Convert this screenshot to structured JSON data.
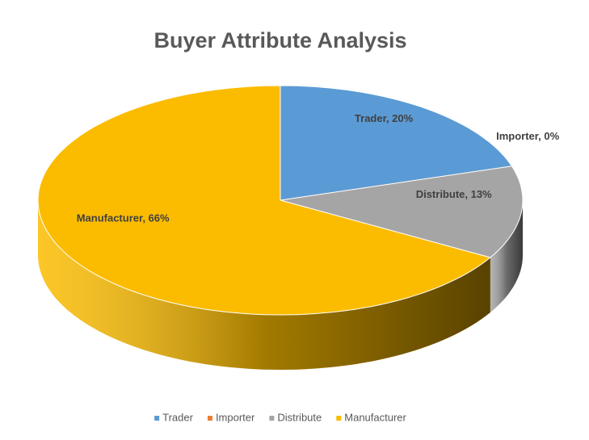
{
  "chart_data": {
    "type": "pie3d",
    "title": "Buyer Attribute Analysis",
    "categories": [
      "Trader",
      "Importer",
      "Distribute",
      "Manufacturer"
    ],
    "values": [
      20,
      0,
      13,
      66
    ],
    "value_labels": [
      "Trader, 20%",
      "Importer, 0%",
      "Distribute, 13%",
      "Manufacturer, 66%"
    ],
    "colors": [
      "#5b9bd5",
      "#ed7d31",
      "#a5a5a5",
      "#fbbc00"
    ],
    "legend": "bottom"
  }
}
